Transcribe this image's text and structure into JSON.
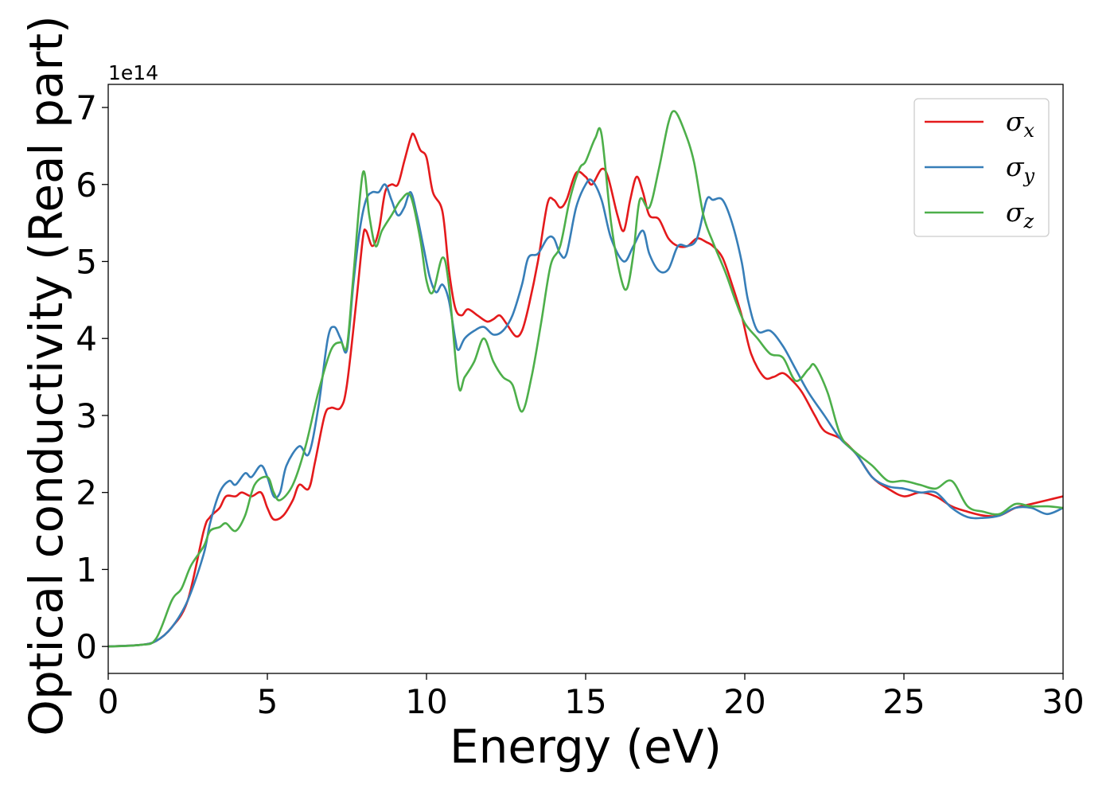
{
  "chart_data": {
    "type": "line",
    "xlabel": "Energy (eV)",
    "ylabel": "Optical conductivity (Real part)",
    "y_offset_label": "1e14",
    "xlim": [
      0,
      30
    ],
    "ylim": [
      -0.35,
      7.3
    ],
    "x_ticks": [
      0,
      5,
      10,
      15,
      20,
      25,
      30
    ],
    "x_tick_labels": [
      "0",
      "5",
      "10",
      "15",
      "20",
      "25",
      "30"
    ],
    "y_ticks": [
      0,
      1,
      2,
      3,
      4,
      5,
      6,
      7
    ],
    "y_tick_labels": [
      "0",
      "1",
      "2",
      "3",
      "4",
      "5",
      "6",
      "7"
    ],
    "legend_position": "top-right",
    "grid": false,
    "series": [
      {
        "name": "σx",
        "sigma": "σ",
        "subscript": "x",
        "color": "#e41a1c",
        "points": [
          [
            0,
            0
          ],
          [
            1,
            0.02
          ],
          [
            1.5,
            0.07
          ],
          [
            2,
            0.25
          ],
          [
            2.5,
            0.6
          ],
          [
            3,
            1.5
          ],
          [
            3.2,
            1.68
          ],
          [
            3.5,
            1.8
          ],
          [
            3.7,
            1.95
          ],
          [
            4,
            1.95
          ],
          [
            4.2,
            2.0
          ],
          [
            4.5,
            1.95
          ],
          [
            4.8,
            2.0
          ],
          [
            5,
            1.8
          ],
          [
            5.2,
            1.65
          ],
          [
            5.5,
            1.7
          ],
          [
            5.8,
            1.9
          ],
          [
            6,
            2.1
          ],
          [
            6.3,
            2.05
          ],
          [
            6.5,
            2.4
          ],
          [
            6.8,
            3.0
          ],
          [
            7,
            3.1
          ],
          [
            7.3,
            3.1
          ],
          [
            7.5,
            3.4
          ],
          [
            7.8,
            4.5
          ],
          [
            8,
            5.3
          ],
          [
            8.1,
            5.4
          ],
          [
            8.3,
            5.2
          ],
          [
            8.5,
            5.4
          ],
          [
            8.7,
            5.9
          ],
          [
            8.9,
            6.0
          ],
          [
            9.1,
            6.0
          ],
          [
            9.3,
            6.3
          ],
          [
            9.5,
            6.6
          ],
          [
            9.6,
            6.65
          ],
          [
            9.8,
            6.45
          ],
          [
            10,
            6.35
          ],
          [
            10.2,
            5.9
          ],
          [
            10.5,
            5.65
          ],
          [
            10.7,
            4.9
          ],
          [
            10.9,
            4.4
          ],
          [
            11.1,
            4.3
          ],
          [
            11.3,
            4.38
          ],
          [
            11.6,
            4.3
          ],
          [
            11.9,
            4.22
          ],
          [
            12.1,
            4.25
          ],
          [
            12.3,
            4.3
          ],
          [
            12.5,
            4.2
          ],
          [
            12.8,
            4.03
          ],
          [
            13,
            4.1
          ],
          [
            13.2,
            4.4
          ],
          [
            13.5,
            5.0
          ],
          [
            13.8,
            5.75
          ],
          [
            14,
            5.8
          ],
          [
            14.2,
            5.7
          ],
          [
            14.4,
            5.8
          ],
          [
            14.7,
            6.15
          ],
          [
            15,
            6.1
          ],
          [
            15.2,
            6.0
          ],
          [
            15.5,
            6.2
          ],
          [
            15.7,
            6.1
          ],
          [
            16,
            5.6
          ],
          [
            16.2,
            5.4
          ],
          [
            16.4,
            5.8
          ],
          [
            16.6,
            6.1
          ],
          [
            16.8,
            5.9
          ],
          [
            17,
            5.6
          ],
          [
            17.3,
            5.55
          ],
          [
            17.6,
            5.3
          ],
          [
            17.9,
            5.2
          ],
          [
            18.2,
            5.2
          ],
          [
            18.5,
            5.3
          ],
          [
            18.8,
            5.25
          ],
          [
            19,
            5.2
          ],
          [
            19.3,
            5.05
          ],
          [
            19.6,
            4.7
          ],
          [
            19.9,
            4.3
          ],
          [
            20.2,
            3.8
          ],
          [
            20.6,
            3.5
          ],
          [
            20.9,
            3.5
          ],
          [
            21.2,
            3.55
          ],
          [
            21.5,
            3.45
          ],
          [
            21.8,
            3.3
          ],
          [
            22.2,
            3.0
          ],
          [
            22.5,
            2.8
          ],
          [
            23,
            2.7
          ],
          [
            23.5,
            2.5
          ],
          [
            24,
            2.2
          ],
          [
            24.5,
            2.05
          ],
          [
            25,
            1.95
          ],
          [
            25.5,
            2.0
          ],
          [
            26,
            1.95
          ],
          [
            26.5,
            1.82
          ],
          [
            27,
            1.75
          ],
          [
            27.5,
            1.7
          ],
          [
            28,
            1.7
          ],
          [
            28.5,
            1.8
          ],
          [
            29,
            1.85
          ],
          [
            29.5,
            1.9
          ],
          [
            30,
            1.95
          ]
        ]
      },
      {
        "name": "σy",
        "sigma": "σ",
        "subscript": "y",
        "color": "#377eb8",
        "points": [
          [
            0,
            0
          ],
          [
            1,
            0.02
          ],
          [
            1.5,
            0.07
          ],
          [
            2,
            0.25
          ],
          [
            2.5,
            0.6
          ],
          [
            3,
            1.2
          ],
          [
            3.2,
            1.6
          ],
          [
            3.5,
            2.0
          ],
          [
            3.8,
            2.15
          ],
          [
            4,
            2.1
          ],
          [
            4.3,
            2.25
          ],
          [
            4.5,
            2.2
          ],
          [
            4.8,
            2.35
          ],
          [
            5,
            2.2
          ],
          [
            5.2,
            1.95
          ],
          [
            5.4,
            2.0
          ],
          [
            5.6,
            2.35
          ],
          [
            6,
            2.6
          ],
          [
            6.3,
            2.5
          ],
          [
            6.6,
            3.1
          ],
          [
            6.9,
            4.0
          ],
          [
            7.1,
            4.15
          ],
          [
            7.3,
            4.0
          ],
          [
            7.5,
            3.85
          ],
          [
            7.7,
            4.7
          ],
          [
            7.9,
            5.4
          ],
          [
            8.1,
            5.8
          ],
          [
            8.3,
            5.9
          ],
          [
            8.5,
            5.9
          ],
          [
            8.7,
            6.0
          ],
          [
            8.9,
            5.8
          ],
          [
            9.1,
            5.6
          ],
          [
            9.3,
            5.7
          ],
          [
            9.5,
            5.9
          ],
          [
            9.7,
            5.6
          ],
          [
            9.9,
            5.2
          ],
          [
            10.1,
            4.8
          ],
          [
            10.3,
            4.6
          ],
          [
            10.5,
            4.7
          ],
          [
            10.7,
            4.5
          ],
          [
            10.9,
            4.0
          ],
          [
            11,
            3.85
          ],
          [
            11.2,
            4.0
          ],
          [
            11.5,
            4.1
          ],
          [
            11.8,
            4.15
          ],
          [
            12.1,
            4.05
          ],
          [
            12.4,
            4.1
          ],
          [
            12.7,
            4.3
          ],
          [
            13,
            4.7
          ],
          [
            13.2,
            5.05
          ],
          [
            13.5,
            5.1
          ],
          [
            13.8,
            5.3
          ],
          [
            14,
            5.3
          ],
          [
            14.2,
            5.1
          ],
          [
            14.4,
            5.1
          ],
          [
            14.7,
            5.7
          ],
          [
            15,
            6.0
          ],
          [
            15.2,
            6.05
          ],
          [
            15.5,
            5.8
          ],
          [
            15.8,
            5.3
          ],
          [
            16.2,
            5.0
          ],
          [
            16.5,
            5.2
          ],
          [
            16.8,
            5.4
          ],
          [
            17,
            5.1
          ],
          [
            17.3,
            4.88
          ],
          [
            17.6,
            4.9
          ],
          [
            17.9,
            5.2
          ],
          [
            18.2,
            5.2
          ],
          [
            18.5,
            5.3
          ],
          [
            18.8,
            5.8
          ],
          [
            19,
            5.8
          ],
          [
            19.3,
            5.8
          ],
          [
            19.6,
            5.5
          ],
          [
            19.9,
            5.0
          ],
          [
            20.1,
            4.5
          ],
          [
            20.4,
            4.1
          ],
          [
            20.8,
            4.1
          ],
          [
            21.2,
            3.9
          ],
          [
            21.6,
            3.6
          ],
          [
            22,
            3.3
          ],
          [
            22.5,
            3.0
          ],
          [
            23,
            2.7
          ],
          [
            23.5,
            2.5
          ],
          [
            24,
            2.2
          ],
          [
            24.5,
            2.08
          ],
          [
            25,
            2.05
          ],
          [
            25.5,
            2.0
          ],
          [
            26,
            2.0
          ],
          [
            26.5,
            1.8
          ],
          [
            27,
            1.68
          ],
          [
            27.5,
            1.67
          ],
          [
            28,
            1.7
          ],
          [
            28.5,
            1.8
          ],
          [
            29,
            1.8
          ],
          [
            29.5,
            1.72
          ],
          [
            30,
            1.8
          ]
        ]
      },
      {
        "name": "σz",
        "sigma": "σ",
        "subscript": "z",
        "color": "#4daf4a",
        "points": [
          [
            0,
            0
          ],
          [
            1,
            0.02
          ],
          [
            1.5,
            0.1
          ],
          [
            2,
            0.6
          ],
          [
            2.3,
            0.75
          ],
          [
            2.6,
            1.05
          ],
          [
            3,
            1.3
          ],
          [
            3.2,
            1.5
          ],
          [
            3.5,
            1.55
          ],
          [
            3.7,
            1.6
          ],
          [
            4,
            1.5
          ],
          [
            4.3,
            1.7
          ],
          [
            4.6,
            2.1
          ],
          [
            5,
            2.2
          ],
          [
            5.2,
            2.0
          ],
          [
            5.4,
            1.9
          ],
          [
            5.8,
            2.1
          ],
          [
            6.2,
            2.6
          ],
          [
            6.6,
            3.3
          ],
          [
            7,
            3.85
          ],
          [
            7.3,
            3.95
          ],
          [
            7.5,
            3.9
          ],
          [
            7.7,
            4.8
          ],
          [
            8,
            6.15
          ],
          [
            8.2,
            5.6
          ],
          [
            8.4,
            5.2
          ],
          [
            8.6,
            5.4
          ],
          [
            8.9,
            5.6
          ],
          [
            9.2,
            5.8
          ],
          [
            9.5,
            5.85
          ],
          [
            9.8,
            5.3
          ],
          [
            10,
            4.75
          ],
          [
            10.2,
            4.6
          ],
          [
            10.5,
            5.05
          ],
          [
            10.7,
            4.7
          ],
          [
            11,
            3.4
          ],
          [
            11.2,
            3.5
          ],
          [
            11.5,
            3.7
          ],
          [
            11.8,
            4.0
          ],
          [
            12.1,
            3.7
          ],
          [
            12.4,
            3.5
          ],
          [
            12.7,
            3.4
          ],
          [
            13,
            3.05
          ],
          [
            13.3,
            3.5
          ],
          [
            13.6,
            4.2
          ],
          [
            13.9,
            4.95
          ],
          [
            14.2,
            5.2
          ],
          [
            14.5,
            5.8
          ],
          [
            14.8,
            6.2
          ],
          [
            15,
            6.3
          ],
          [
            15.3,
            6.6
          ],
          [
            15.5,
            6.65
          ],
          [
            15.8,
            5.5
          ],
          [
            16.1,
            4.8
          ],
          [
            16.3,
            4.65
          ],
          [
            16.5,
            5.1
          ],
          [
            16.7,
            5.8
          ],
          [
            17,
            5.7
          ],
          [
            17.3,
            6.2
          ],
          [
            17.6,
            6.8
          ],
          [
            17.8,
            6.95
          ],
          [
            18.1,
            6.7
          ],
          [
            18.4,
            6.3
          ],
          [
            18.7,
            5.6
          ],
          [
            19,
            5.25
          ],
          [
            19.4,
            4.85
          ],
          [
            19.7,
            4.5
          ],
          [
            20,
            4.2
          ],
          [
            20.4,
            4.0
          ],
          [
            20.8,
            3.8
          ],
          [
            21.2,
            3.75
          ],
          [
            21.6,
            3.45
          ],
          [
            22,
            3.6
          ],
          [
            22.2,
            3.65
          ],
          [
            22.6,
            3.3
          ],
          [
            23,
            2.75
          ],
          [
            23.4,
            2.55
          ],
          [
            24,
            2.35
          ],
          [
            24.5,
            2.15
          ],
          [
            25,
            2.15
          ],
          [
            25.5,
            2.1
          ],
          [
            26,
            2.05
          ],
          [
            26.5,
            2.15
          ],
          [
            27,
            1.82
          ],
          [
            27.5,
            1.75
          ],
          [
            28,
            1.72
          ],
          [
            28.5,
            1.85
          ],
          [
            29,
            1.82
          ],
          [
            29.5,
            1.82
          ],
          [
            30,
            1.8
          ]
        ]
      }
    ]
  }
}
